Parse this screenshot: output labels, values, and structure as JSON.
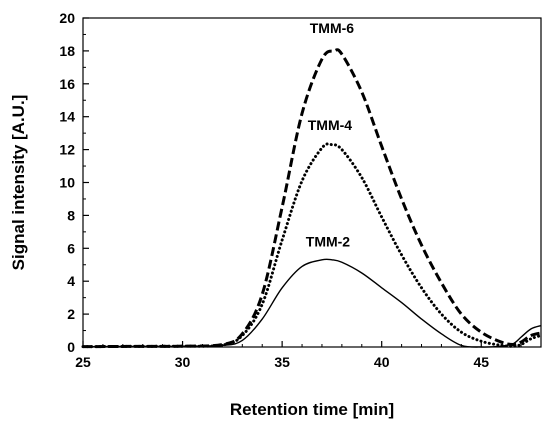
{
  "chart_data": {
    "type": "line",
    "xlabel": "Retention time [min]",
    "ylabel": "Signal intensity [A.U.]",
    "xlim": [
      25,
      48
    ],
    "ylim": [
      0,
      20
    ],
    "x_ticks": [
      25,
      30,
      35,
      40,
      45
    ],
    "y_ticks": [
      0,
      2,
      4,
      6,
      8,
      10,
      12,
      14,
      16,
      18,
      20
    ],
    "x_tick_labels": [
      "25",
      "30",
      "35",
      "40",
      "45"
    ],
    "y_tick_labels": [
      "0",
      "2",
      "4",
      "6",
      "8",
      "10",
      "12",
      "14",
      "16",
      "18",
      "20"
    ],
    "grid": false,
    "series": [
      {
        "name": "TMM-6",
        "style": "dashed",
        "color": "#000000",
        "x": [
          25,
          28,
          30,
          32,
          33,
          34,
          35,
          36,
          37,
          37.6,
          38,
          39,
          40,
          41,
          42,
          43,
          44,
          45,
          46,
          46.6,
          47,
          47.5,
          48
        ],
        "y": [
          0.02,
          0.04,
          0.05,
          0.15,
          0.8,
          3.2,
          8.5,
          14.2,
          17.5,
          18.0,
          17.8,
          15.5,
          12.2,
          9.0,
          6.2,
          3.9,
          2.0,
          0.9,
          0.3,
          0.15,
          0.3,
          0.7,
          0.85
        ],
        "label_at": [
          37.5,
          19.1
        ]
      },
      {
        "name": "TMM-4",
        "style": "dotted",
        "color": "#000000",
        "x": [
          25,
          28,
          30,
          32,
          33,
          34,
          35,
          36,
          37,
          37.5,
          38,
          39,
          40,
          41,
          42,
          43,
          44,
          45,
          46,
          46.6,
          47,
          47.5,
          48
        ],
        "y": [
          0.02,
          0.04,
          0.05,
          0.12,
          0.7,
          2.6,
          6.5,
          10.1,
          12.1,
          12.3,
          12.0,
          10.3,
          7.9,
          5.6,
          3.6,
          2.0,
          0.9,
          0.35,
          0.1,
          0.05,
          0.15,
          0.5,
          0.7
        ],
        "label_at": [
          37.4,
          13.2
        ]
      },
      {
        "name": "TMM-2",
        "style": "solid",
        "color": "#000000",
        "x": [
          25,
          28,
          30,
          32,
          33,
          34,
          35,
          36,
          37,
          37.5,
          38,
          39,
          40,
          41,
          42,
          43,
          44,
          45,
          46,
          46.6,
          47,
          47.5,
          48
        ],
        "y": [
          0.02,
          0.04,
          0.05,
          0.1,
          0.4,
          1.7,
          3.6,
          4.9,
          5.3,
          5.3,
          5.15,
          4.5,
          3.6,
          2.7,
          1.7,
          0.8,
          0.1,
          0.0,
          0.05,
          0.2,
          0.6,
          1.1,
          1.3
        ],
        "label_at": [
          37.3,
          6.1
        ]
      }
    ]
  }
}
